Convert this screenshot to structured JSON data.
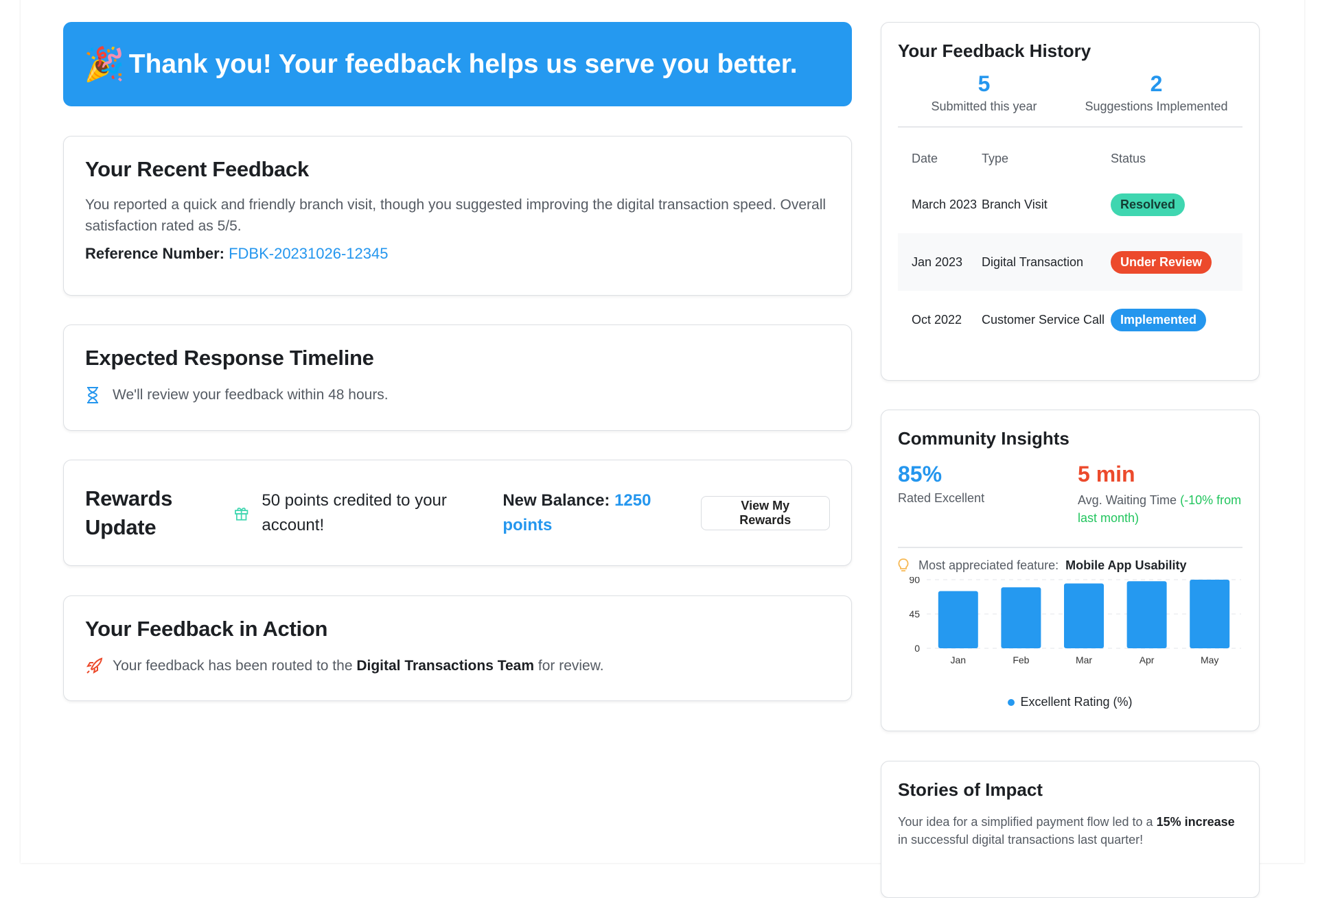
{
  "banner": {
    "icon": "party-popper-icon",
    "text": "Thank you! Your feedback helps us serve you better."
  },
  "recent": {
    "title": "Your Recent Feedback",
    "body": "You reported a quick and friendly branch visit, though you suggested improving the digital transaction speed. Overall satisfaction rated as 5/5.",
    "ref_label": "Reference Number:",
    "ref_value": "FDBK-20231026-12345"
  },
  "timeline": {
    "title": "Expected Response Timeline",
    "icon": "hourglass-icon",
    "text": "We'll review your feedback within 48 hours."
  },
  "rewards": {
    "title": "Rewards Update",
    "icon": "gift-icon",
    "credited": "50 points credited to your account!",
    "balance_label": "New Balance:",
    "balance_value": "1250 points",
    "button": "View My Rewards"
  },
  "action": {
    "title": "Your Feedback in Action",
    "icon": "rocket-icon",
    "pre": "Your feedback has been routed to the",
    "team": "Digital Transactions Team",
    "post": "for review."
  },
  "history": {
    "title": "Your Feedback History",
    "stats": [
      {
        "value": "5",
        "label": "Submitted this year"
      },
      {
        "value": "2",
        "label": "Suggestions Implemented"
      }
    ],
    "columns": [
      "Date",
      "Type",
      "Status"
    ],
    "rows": [
      {
        "date": "March 2023",
        "type": "Branch Visit",
        "status": "Resolved",
        "color": "#3fd6b0",
        "text_color": "#143c33"
      },
      {
        "date": "Jan 2023",
        "type": "Digital Transaction",
        "status": "Under Review",
        "color": "#ec4a2c",
        "text_color": "#ffffff"
      },
      {
        "date": "Oct 2022",
        "type": "Customer Service Call",
        "status": "Implemented",
        "color": "#2496ee",
        "text_color": "#ffffff"
      }
    ]
  },
  "community": {
    "title": "Community Insights",
    "stat1_value": "85%",
    "stat1_label": "Rated Excellent",
    "stat2_value": "5 min",
    "stat2_label": "Avg. Waiting Time",
    "stat2_change": "(-10% from last month)",
    "feature_icon": "lightbulb-icon",
    "feature_label": "Most appreciated feature:",
    "feature_value": "Mobile App Usability"
  },
  "chart_data": {
    "type": "bar",
    "categories": [
      "Jan",
      "Feb",
      "Mar",
      "Apr",
      "May"
    ],
    "series": [
      {
        "name": "Excellent Rating (%)",
        "values": [
          75,
          80,
          85,
          88,
          90
        ]
      }
    ],
    "yticks": [
      "0",
      "45",
      "90"
    ],
    "ylim": [
      0,
      90
    ],
    "grid": true,
    "legend": "bottom",
    "color": "#2599f0"
  },
  "stories": {
    "title": "Stories of Impact",
    "pre": "Your idea for a simplified payment flow led to a",
    "bold": "15% increase",
    "post": "in successful digital transactions last quarter!"
  }
}
